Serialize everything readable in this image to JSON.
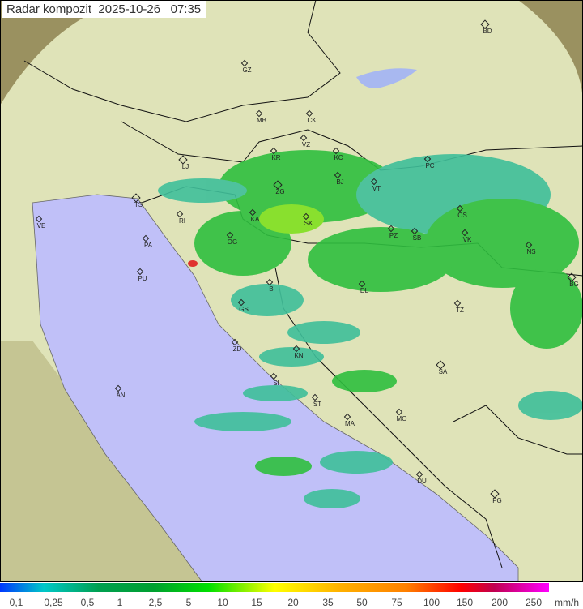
{
  "title": "Radar kompozit  2025-10-26   07:35",
  "colors": {
    "sea": "#c0c0f8",
    "land": "#dfe3b8",
    "outside": "#9a9160",
    "rain_light": "#3fbf9a",
    "rain": "#2fbf3f",
    "rain_heavy": "#80e020"
  },
  "cities": [
    "BD",
    "GZ",
    "MB",
    "CK",
    "VZ",
    "KR",
    "KC",
    "LJ",
    "BJ",
    "VT",
    "PC",
    "TS",
    "ZG",
    "VE",
    "KA",
    "SK",
    "RI",
    "OS",
    "VK",
    "PZ",
    "SB",
    "PA",
    "OG",
    "NS",
    "BG",
    "PU",
    "BI",
    "DL",
    "GS",
    "TZ",
    "ZD",
    "KN",
    "SA",
    "SI",
    "AN",
    "ST",
    "MA",
    "MO",
    "DU",
    "PG"
  ],
  "legend": {
    "labels": [
      "0,1",
      "0,25",
      "0,5",
      "1",
      "2,5",
      "5",
      "10",
      "15",
      "20",
      "35",
      "50",
      "75",
      "100",
      "150",
      "200",
      "250"
    ],
    "unit": "mm/h"
  }
}
